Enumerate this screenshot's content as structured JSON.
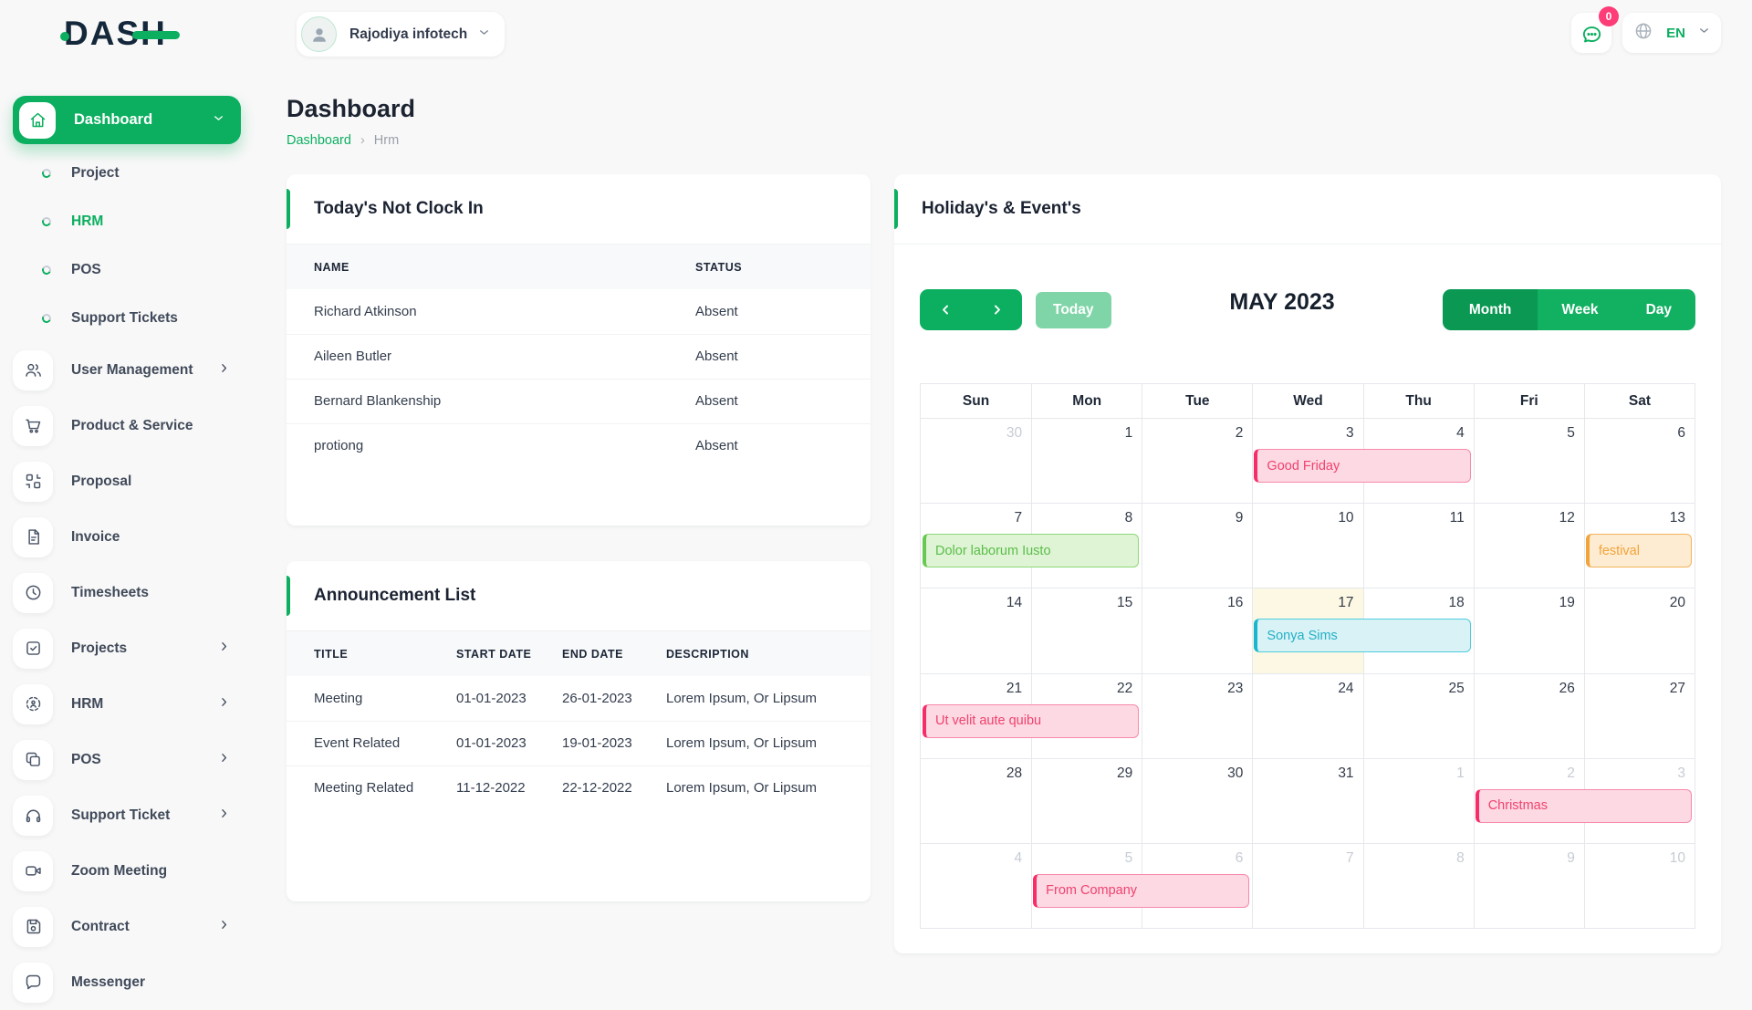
{
  "brand": {
    "name": "DASH"
  },
  "colors": {
    "primary": "#0caf60",
    "primary_dark": "#0a9853",
    "primary_light": "#7fd5a7",
    "badge_pink": "#fe3c78",
    "today_highlight": "#fcf8e3",
    "event_pink": {
      "bar": "#f62d67",
      "bg": "#fcd9e3",
      "text": "#f1426e"
    },
    "event_green": {
      "bar": "#67c94f",
      "bg": "#def4d4",
      "text": "#5bbd4a"
    },
    "event_orange": {
      "bar": "#f2a33c",
      "bg": "#fdecd1",
      "text": "#f2a33c"
    },
    "event_cyan": {
      "bar": "#17b8ce",
      "bg": "#d8f2f6",
      "text": "#23b0c5"
    }
  },
  "topbar": {
    "company": "Rajodiya infotech",
    "notification_badge": "0",
    "language": "EN"
  },
  "sidebar": {
    "items": [
      {
        "label": "Dashboard",
        "icon": "home-icon",
        "style": "primary",
        "chevron": "down"
      },
      {
        "label": "Project",
        "icon": "ring-icon",
        "style": "sub"
      },
      {
        "label": "HRM",
        "icon": "ring-icon",
        "style": "sub",
        "highlight": true
      },
      {
        "label": "POS",
        "icon": "ring-icon",
        "style": "sub"
      },
      {
        "label": "Support Tickets",
        "icon": "ring-icon",
        "style": "sub"
      },
      {
        "label": "User Management",
        "icon": "users-icon",
        "style": "icon",
        "chevron": "right"
      },
      {
        "label": "Product & Service",
        "icon": "cart-icon",
        "style": "icon"
      },
      {
        "label": "Proposal",
        "icon": "proposal-icon",
        "style": "icon"
      },
      {
        "label": "Invoice",
        "icon": "invoice-icon",
        "style": "icon"
      },
      {
        "label": "Timesheets",
        "icon": "clock-icon",
        "style": "icon"
      },
      {
        "label": "Projects",
        "icon": "check-square-icon",
        "style": "icon",
        "chevron": "right"
      },
      {
        "label": "HRM",
        "icon": "target-icon",
        "style": "icon",
        "chevron": "right"
      },
      {
        "label": "POS",
        "icon": "copy-icon",
        "style": "icon",
        "chevron": "right"
      },
      {
        "label": "Support Ticket",
        "icon": "headphones-icon",
        "style": "icon",
        "chevron": "right"
      },
      {
        "label": "Zoom Meeting",
        "icon": "video-icon",
        "style": "icon"
      },
      {
        "label": "Contract",
        "icon": "save-icon",
        "style": "icon",
        "chevron": "right"
      },
      {
        "label": "Messenger",
        "icon": "chat-icon",
        "style": "icon"
      }
    ]
  },
  "page": {
    "title": "Dashboard",
    "breadcrumb": {
      "root": "Dashboard",
      "separator": "›",
      "current": "Hrm"
    }
  },
  "clockin_card": {
    "title": "Today's Not Clock In",
    "columns": [
      "NAME",
      "STATUS"
    ],
    "rows": [
      [
        "Richard Atkinson",
        "Absent"
      ],
      [
        "Aileen Butler",
        "Absent"
      ],
      [
        "Bernard Blankenship",
        "Absent"
      ],
      [
        "protiong",
        "Absent"
      ]
    ]
  },
  "announcement_card": {
    "title": "Announcement List",
    "columns": [
      "TITLE",
      "START DATE",
      "END DATE",
      "DESCRIPTION"
    ],
    "rows": [
      [
        "Meeting",
        "01-01-2023",
        "26-01-2023",
        "Lorem Ipsum, Or Lipsum"
      ],
      [
        "Event Related",
        "01-01-2023",
        "19-01-2023",
        "Lorem Ipsum, Or Lipsum"
      ],
      [
        "Meeting Related",
        "11-12-2022",
        "22-12-2022",
        "Lorem Ipsum, Or Lipsum"
      ]
    ]
  },
  "calendar": {
    "title": "Holiday's & Event's",
    "toolbar": {
      "today_label": "Today",
      "month_title": "MAY 2023",
      "views": [
        "Month",
        "Week",
        "Day"
      ],
      "active_view": "Month"
    },
    "day_headers": [
      "Sun",
      "Mon",
      "Tue",
      "Wed",
      "Thu",
      "Fri",
      "Sat"
    ],
    "weeks": [
      [
        {
          "n": 30,
          "muted": true
        },
        {
          "n": 1
        },
        {
          "n": 2
        },
        {
          "n": 3
        },
        {
          "n": 4
        },
        {
          "n": 5
        },
        {
          "n": 6
        }
      ],
      [
        {
          "n": 7
        },
        {
          "n": 8
        },
        {
          "n": 9
        },
        {
          "n": 10
        },
        {
          "n": 11
        },
        {
          "n": 12
        },
        {
          "n": 13
        }
      ],
      [
        {
          "n": 14
        },
        {
          "n": 15
        },
        {
          "n": 16
        },
        {
          "n": 17
        },
        {
          "n": 18
        },
        {
          "n": 19
        },
        {
          "n": 20
        }
      ],
      [
        {
          "n": 21
        },
        {
          "n": 22
        },
        {
          "n": 23
        },
        {
          "n": 24
        },
        {
          "n": 25
        },
        {
          "n": 26
        },
        {
          "n": 27
        }
      ],
      [
        {
          "n": 28
        },
        {
          "n": 29
        },
        {
          "n": 30
        },
        {
          "n": 31
        },
        {
          "n": 1,
          "muted": true
        },
        {
          "n": 2,
          "muted": true
        },
        {
          "n": 3,
          "muted": true
        }
      ],
      [
        {
          "n": 4,
          "muted": true
        },
        {
          "n": 5,
          "muted": true
        },
        {
          "n": 6,
          "muted": true
        },
        {
          "n": 7,
          "muted": true
        },
        {
          "n": 8,
          "muted": true
        },
        {
          "n": 9,
          "muted": true
        },
        {
          "n": 10,
          "muted": true
        }
      ]
    ],
    "today": {
      "week": 2,
      "col": 3
    },
    "events": [
      {
        "label": "Good Friday",
        "week": 0,
        "start": 3,
        "span": 2,
        "type": "pink"
      },
      {
        "label": "Dolor laborum Iusto",
        "week": 1,
        "start": 0,
        "span": 2,
        "type": "green"
      },
      {
        "label": "festival",
        "week": 1,
        "start": 6,
        "span": 1,
        "type": "orange"
      },
      {
        "label": "Sonya Sims",
        "week": 2,
        "start": 3,
        "span": 2,
        "type": "cyan"
      },
      {
        "label": "Ut velit aute quibu",
        "week": 3,
        "start": 0,
        "span": 2,
        "type": "pink"
      },
      {
        "label": "Christmas",
        "week": 4,
        "start": 5,
        "span": 2,
        "type": "pink"
      },
      {
        "label": "From Company",
        "week": 5,
        "start": 1,
        "span": 2,
        "type": "pink"
      }
    ]
  }
}
